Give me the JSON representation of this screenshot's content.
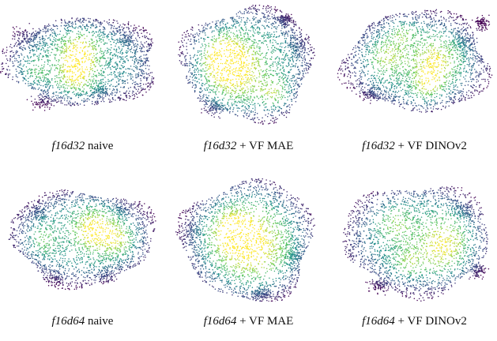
{
  "figure": {
    "panels": [
      {
        "model": "f16d32",
        "suffix": " naive"
      },
      {
        "model": "f16d32",
        "suffix": " + VF MAE"
      },
      {
        "model": "f16d32",
        "suffix": " + VF DINOv2"
      },
      {
        "model": "f16d64",
        "suffix": " naive"
      },
      {
        "model": "f16d64",
        "suffix": " + VF MAE"
      },
      {
        "model": "f16d64",
        "suffix": " + VF DINOv2"
      }
    ],
    "colormap": [
      "#440154",
      "#3b528b",
      "#21918c",
      "#5ec962",
      "#fde725"
    ]
  }
}
